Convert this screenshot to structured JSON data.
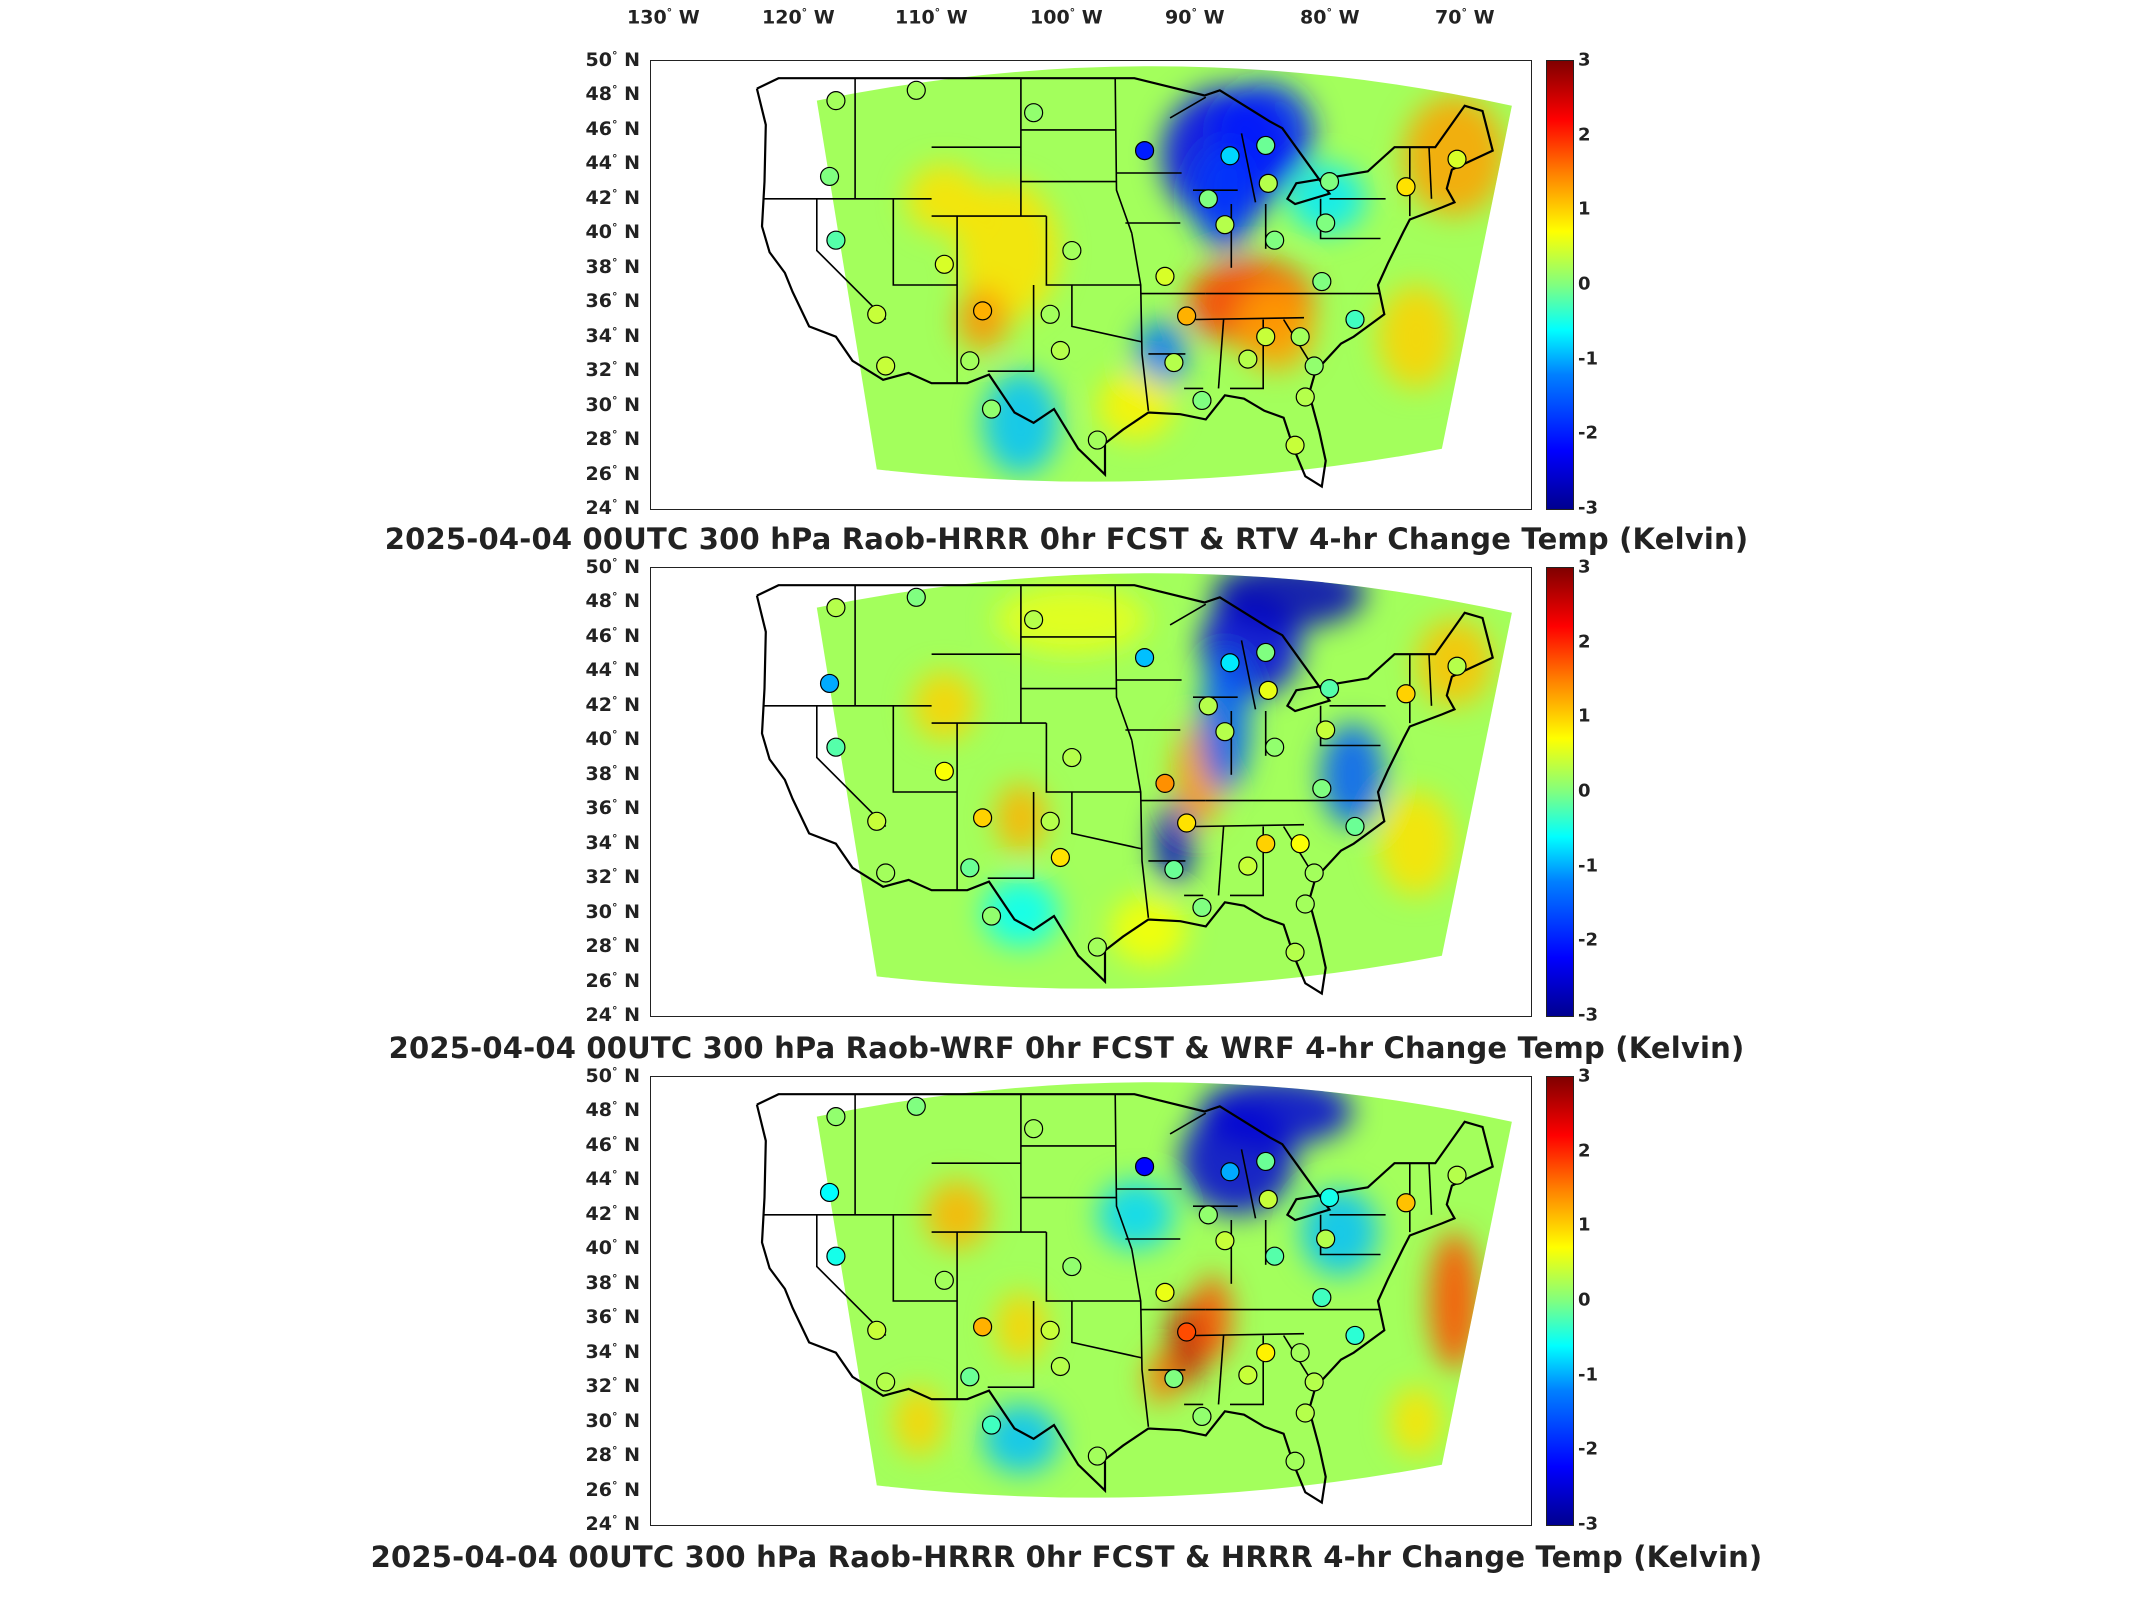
{
  "longitude_labels": [
    "130",
    "120",
    "110",
    "100",
    "90",
    "80",
    "70"
  ],
  "longitude_suffix": "W",
  "latitude_labels": [
    "50",
    "48",
    "46",
    "44",
    "42",
    "40",
    "38",
    "36",
    "34",
    "32",
    "30",
    "28",
    "26",
    "24"
  ],
  "latitude_suffix": "N",
  "colorbar": {
    "min": -3,
    "max": 3,
    "ticks": [
      "3",
      "2",
      "1",
      "0",
      "-1",
      "-2",
      "-3"
    ],
    "colormap": "jet"
  },
  "panels": [
    {
      "title": "2025-04-04 00UTC 300 hPa Raob-HRRR 0hr FCST & RTV 4-hr Change Temp (Kelvin)"
    },
    {
      "title": "2025-04-04 00UTC 300 hPa Raob-WRF 0hr FCST & WRF 4-hr Change Temp (Kelvin)"
    },
    {
      "title": "2025-04-04 00UTC 300 hPa Raob-HRRR 0hr FCST & HRRR 4-hr Change Temp (Kelvin)"
    }
  ],
  "map": {
    "extent": {
      "lon_min": -133,
      "lon_max": -64,
      "lat_min": 24,
      "lat_max": 50
    },
    "stations": [
      {
        "name": "s1",
        "lon": -118.5,
        "lat": 47.7,
        "values": [
          0.2,
          0.3,
          0.1
        ]
      },
      {
        "name": "s2",
        "lon": -112.2,
        "lat": 48.3,
        "values": [
          0.2,
          0.0,
          0.0
        ]
      },
      {
        "name": "s3",
        "lon": -103.0,
        "lat": 47.0,
        "values": [
          0.1,
          0.3,
          0.2
        ]
      },
      {
        "name": "s4",
        "lon": -94.3,
        "lat": 44.8,
        "values": [
          -2.0,
          -0.9,
          -2.2
        ]
      },
      {
        "name": "s5",
        "lon": -87.6,
        "lat": 44.5,
        "values": [
          -0.8,
          -0.7,
          -1.0
        ]
      },
      {
        "name": "s6",
        "lon": -84.8,
        "lat": 45.1,
        "values": [
          -0.1,
          0.0,
          -0.1
        ]
      },
      {
        "name": "s7",
        "lon": -84.6,
        "lat": 42.9,
        "values": [
          0.3,
          0.6,
          0.4
        ]
      },
      {
        "name": "s8",
        "lon": -79.8,
        "lat": 43.0,
        "values": [
          0.0,
          -0.2,
          -0.5
        ]
      },
      {
        "name": "s9",
        "lon": -73.8,
        "lat": 42.7,
        "values": [
          0.9,
          1.0,
          1.1
        ]
      },
      {
        "name": "s10",
        "lon": -69.8,
        "lat": 44.3,
        "values": [
          0.5,
          0.3,
          0.3
        ]
      },
      {
        "name": "s11",
        "lon": -119.0,
        "lat": 43.3,
        "values": [
          0.0,
          -1.0,
          -0.6
        ]
      },
      {
        "name": "s12",
        "lon": -89.3,
        "lat": 42.0,
        "values": [
          0.0,
          0.3,
          0.1
        ]
      },
      {
        "name": "s13",
        "lon": -88.0,
        "lat": 40.5,
        "values": [
          0.3,
          0.3,
          0.4
        ]
      },
      {
        "name": "s14",
        "lon": -84.1,
        "lat": 39.6,
        "values": [
          0.0,
          0.1,
          -0.2
        ]
      },
      {
        "name": "s15",
        "lon": -80.1,
        "lat": 40.6,
        "values": [
          0.0,
          0.4,
          0.3
        ]
      },
      {
        "name": "s16",
        "lon": -118.5,
        "lat": 39.6,
        "values": [
          -0.2,
          -0.2,
          -0.5
        ]
      },
      {
        "name": "s17",
        "lon": -110.0,
        "lat": 38.2,
        "values": [
          0.5,
          0.7,
          0.2
        ]
      },
      {
        "name": "s18",
        "lon": -100.0,
        "lat": 39.0,
        "values": [
          0.2,
          0.3,
          0.1
        ]
      },
      {
        "name": "s19",
        "lon": -92.7,
        "lat": 37.5,
        "values": [
          0.5,
          1.4,
          0.6
        ]
      },
      {
        "name": "s20",
        "lon": -80.4,
        "lat": 37.2,
        "values": [
          0.0,
          0.0,
          -0.3
        ]
      },
      {
        "name": "s21",
        "lon": -115.3,
        "lat": 35.3,
        "values": [
          0.4,
          0.4,
          0.4
        ]
      },
      {
        "name": "s22",
        "lon": -107.0,
        "lat": 35.5,
        "values": [
          1.2,
          1.0,
          1.2
        ]
      },
      {
        "name": "s23",
        "lon": -101.7,
        "lat": 35.3,
        "values": [
          0.2,
          0.3,
          0.4
        ]
      },
      {
        "name": "s24",
        "lon": -91.0,
        "lat": 35.2,
        "values": [
          1.2,
          0.9,
          1.8
        ]
      },
      {
        "name": "s25",
        "lon": -84.8,
        "lat": 34.0,
        "values": [
          0.4,
          1.0,
          0.8
        ]
      },
      {
        "name": "s26",
        "lon": -82.1,
        "lat": 34.0,
        "values": [
          0.2,
          0.7,
          0.2
        ]
      },
      {
        "name": "s27",
        "lon": -77.8,
        "lat": 35.0,
        "values": [
          -0.3,
          -0.1,
          -0.4
        ]
      },
      {
        "name": "s28",
        "lon": -108.0,
        "lat": 32.6,
        "values": [
          0.2,
          -0.1,
          -0.1
        ]
      },
      {
        "name": "s29",
        "lon": -100.9,
        "lat": 33.2,
        "values": [
          0.3,
          0.9,
          0.3
        ]
      },
      {
        "name": "s30",
        "lon": -92.0,
        "lat": 32.5,
        "values": [
          0.3,
          -0.1,
          0.0
        ]
      },
      {
        "name": "s31",
        "lon": -86.2,
        "lat": 32.7,
        "values": [
          0.3,
          0.4,
          0.4
        ]
      },
      {
        "name": "s32",
        "lon": -81.0,
        "lat": 32.3,
        "values": [
          0.1,
          0.2,
          0.3
        ]
      },
      {
        "name": "s33",
        "lon": -114.6,
        "lat": 32.3,
        "values": [
          0.4,
          0.2,
          0.3
        ]
      },
      {
        "name": "s34",
        "lon": -106.3,
        "lat": 29.8,
        "values": [
          0.1,
          0.1,
          -0.3
        ]
      },
      {
        "name": "s35",
        "lon": -98.0,
        "lat": 28.0,
        "values": [
          0.2,
          0.2,
          0.2
        ]
      },
      {
        "name": "s36",
        "lon": -89.8,
        "lat": 30.3,
        "values": [
          0.0,
          0.0,
          0.1
        ]
      },
      {
        "name": "s37",
        "lon": -81.7,
        "lat": 30.5,
        "values": [
          0.3,
          0.2,
          0.3
        ]
      },
      {
        "name": "s38",
        "lon": -82.5,
        "lat": 27.7,
        "values": [
          0.4,
          0.3,
          0.2
        ]
      }
    ]
  }
}
